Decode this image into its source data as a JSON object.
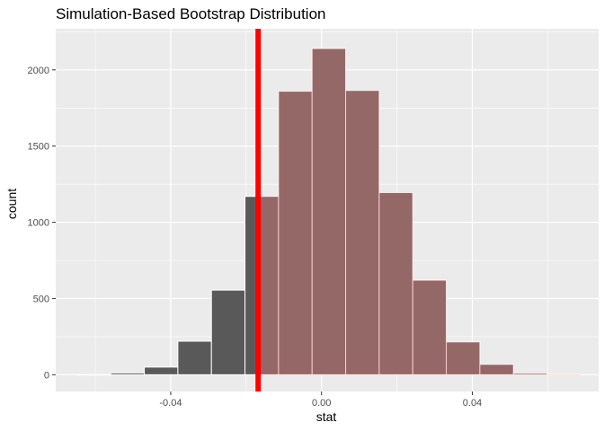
{
  "chart_data": {
    "type": "bar",
    "title": "Simulation-Based Bootstrap Distribution",
    "xlabel": "stat",
    "ylabel": "count",
    "xlim": [
      -0.0705,
      0.0735
    ],
    "ylim": [
      -110,
      2270
    ],
    "x_ticks": [
      -0.04,
      0.0,
      0.04
    ],
    "x_tick_labels": [
      "-0.04",
      "0.00",
      "0.04"
    ],
    "y_ticks": [
      0,
      500,
      1000,
      1500,
      2000
    ],
    "y_tick_labels": [
      "0",
      "500",
      "1000",
      "1500",
      "2000"
    ],
    "bin_width": 0.0089,
    "bins": [
      {
        "xmin": -0.0648,
        "xmax": -0.0559,
        "count": 1
      },
      {
        "xmin": -0.0559,
        "xmax": -0.047,
        "count": 12
      },
      {
        "xmin": -0.047,
        "xmax": -0.0381,
        "count": 50
      },
      {
        "xmin": -0.0381,
        "xmax": -0.0292,
        "count": 220
      },
      {
        "xmin": -0.0292,
        "xmax": -0.0203,
        "count": 555
      },
      {
        "xmin": -0.0203,
        "xmax": -0.0114,
        "count": 1170
      },
      {
        "xmin": -0.0114,
        "xmax": -0.0025,
        "count": 1860
      },
      {
        "xmin": -0.0025,
        "xmax": 0.0064,
        "count": 2140
      },
      {
        "xmin": 0.0064,
        "xmax": 0.0153,
        "count": 1865
      },
      {
        "xmin": 0.0153,
        "xmax": 0.0242,
        "count": 1195
      },
      {
        "xmin": 0.0242,
        "xmax": 0.0331,
        "count": 620
      },
      {
        "xmin": 0.0331,
        "xmax": 0.042,
        "count": 215
      },
      {
        "xmin": 0.042,
        "xmax": 0.0509,
        "count": 68
      },
      {
        "xmin": 0.0509,
        "xmax": 0.0598,
        "count": 10
      },
      {
        "xmin": 0.0598,
        "xmax": 0.0687,
        "count": 2
      }
    ],
    "observed_stat": -0.0168,
    "shade_direction": "greater",
    "colors": {
      "panel": "#ebebeb",
      "grid": "#ffffff",
      "bar_fill": "#595959",
      "bar_outline": "#ffffff",
      "shade": "#f08080",
      "shade_opacity": 0.4,
      "observed_line": "#ff0000"
    },
    "grid": true,
    "legend": "none"
  }
}
